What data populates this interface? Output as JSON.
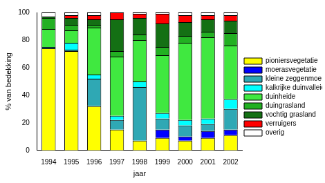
{
  "chart_data": {
    "type": "bar",
    "stacked": true,
    "grid": false,
    "legend": "right",
    "x_label": "jaar",
    "y_label": "% van bedekking",
    "categories": [
      "1994",
      "1995",
      "1996",
      "1997",
      "1998",
      "1999",
      "2000",
      "2001",
      "2002"
    ],
    "ylim": [
      0,
      100
    ],
    "yticks": [
      0,
      20,
      40,
      60,
      80,
      100
    ],
    "series": [
      {
        "name": "pioniersvegetatie",
        "color": "#ffff00",
        "values": [
          74,
          72,
          32,
          15,
          7,
          9,
          7,
          9,
          11
        ]
      },
      {
        "name": "moerasvegetatie",
        "color": "#0000ff",
        "values": [
          0,
          0,
          0,
          0,
          0,
          6,
          3,
          5,
          4
        ]
      },
      {
        "name": "kleine zeggenmoeras",
        "color": "#2fa8b4",
        "values": [
          1,
          1,
          20,
          7,
          39,
          8,
          8,
          5,
          15
        ]
      },
      {
        "name": "kalkrijke duinvalleien",
        "color": "#00ffff",
        "values": [
          0,
          5,
          3,
          3,
          4,
          4,
          4,
          4,
          7
        ]
      },
      {
        "name": "duinheide",
        "color": "#40e840",
        "values": [
          13,
          9,
          34,
          43,
          30,
          42,
          56,
          59,
          39
        ]
      },
      {
        "name": "duingrasland",
        "color": "#22b022",
        "values": [
          8,
          4,
          2,
          4,
          4,
          6,
          5,
          4,
          9
        ]
      },
      {
        "name": "vochtig grasland",
        "color": "#147014",
        "values": [
          1,
          5,
          4,
          23,
          12,
          17,
          10,
          9,
          9
        ]
      },
      {
        "name": "verruigers",
        "color": "#ff0000",
        "values": [
          0,
          2,
          3,
          5,
          3,
          7,
          5,
          3,
          4
        ]
      },
      {
        "name": "overig",
        "color": "#ffffff",
        "values": [
          3,
          2,
          2,
          0,
          1,
          1,
          2,
          2,
          2
        ]
      }
    ]
  }
}
